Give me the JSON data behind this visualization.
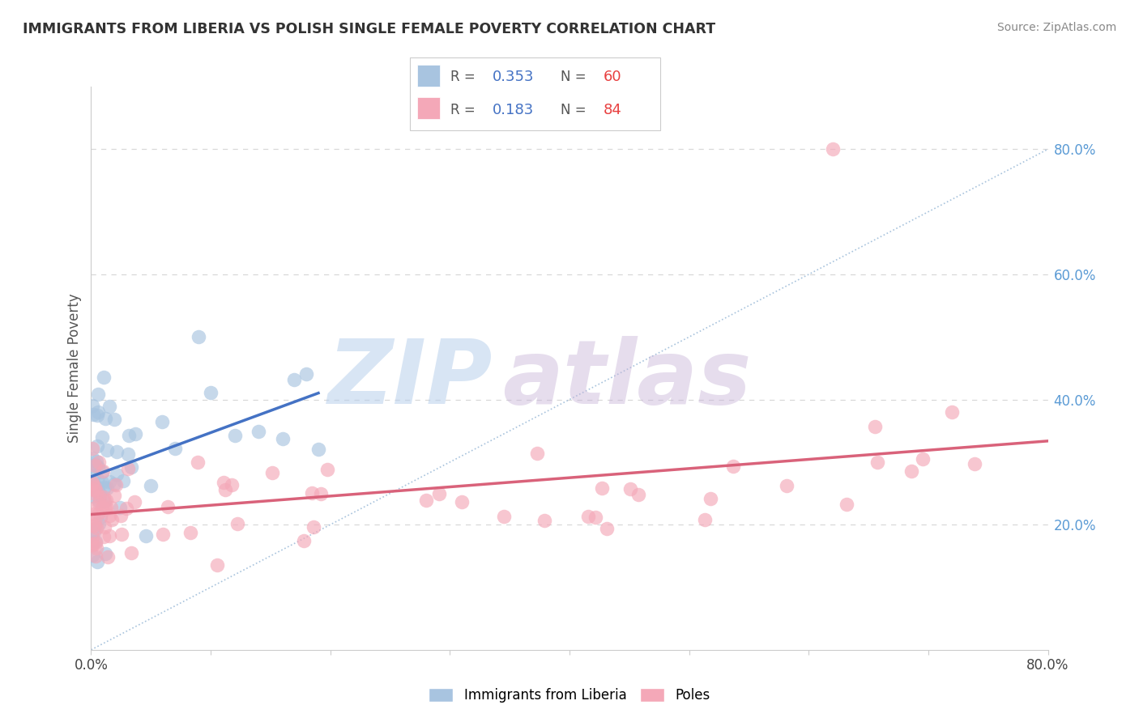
{
  "title": "IMMIGRANTS FROM LIBERIA VS POLISH SINGLE FEMALE POVERTY CORRELATION CHART",
  "source": "Source: ZipAtlas.com",
  "ylabel": "Single Female Poverty",
  "xlim": [
    0,
    0.8
  ],
  "ylim": [
    0,
    0.9
  ],
  "color_liberia": "#a8c4e0",
  "color_poles": "#f4a8b8",
  "color_line_liberia": "#4472c4",
  "color_line_poles": "#d9627a",
  "color_diagonal": "#92b4d4",
  "color_gridline": "#c8c8c8",
  "color_title": "#333333",
  "color_source": "#888888",
  "color_watermark_zip": "#b8cfe8",
  "color_watermark_atlas": "#c8b0d8",
  "color_right_tick": "#5b9bd5",
  "legend_label_1": "Immigrants from Liberia",
  "legend_label_2": "Poles",
  "watermark_text": "ZIPatlas"
}
